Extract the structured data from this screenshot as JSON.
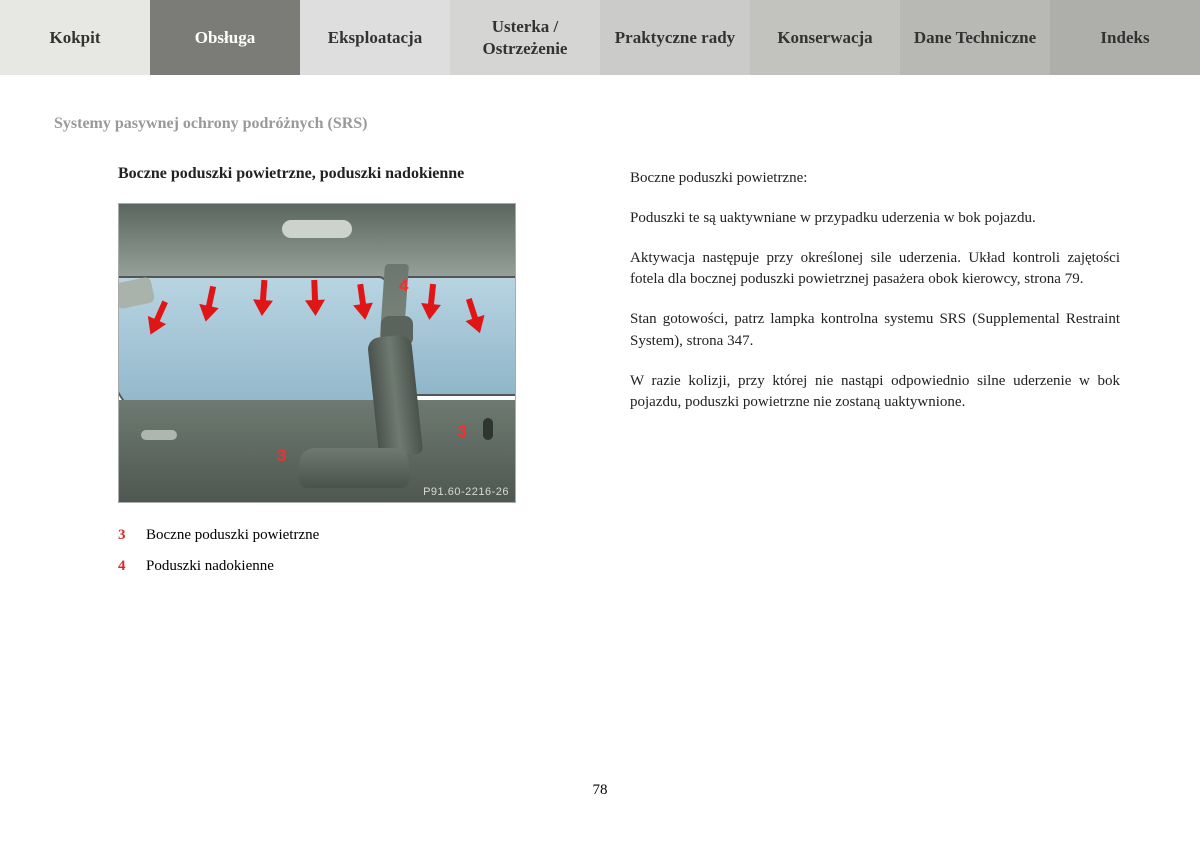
{
  "tabs": [
    {
      "label": "Kokpit",
      "bg": "#e7e7e4",
      "active": false
    },
    {
      "label": "Obsługa",
      "bg": "#7b7b78",
      "active": true
    },
    {
      "label": "Eksploatacja",
      "bg": "#dedede",
      "active": false
    },
    {
      "label": "Usterka / Ostrzeżenie",
      "bg": "#d5d5d3",
      "active": false
    },
    {
      "label": "Praktyczne rady",
      "bg": "#cbcbc9",
      "active": false
    },
    {
      "label": "Konserwacja",
      "bg": "#c2c2bf",
      "active": false
    },
    {
      "label": "Dane Techniczne",
      "bg": "#b8b8b5",
      "active": false
    },
    {
      "label": "Indeks",
      "bg": "#aeaeab",
      "active": false
    }
  ],
  "section_title": "Systemy pasywnej ochrony podróżnych (SRS)",
  "left": {
    "heading": "Boczne poduszki powietrzne, poduszki nadokienne",
    "image_code": "P91.60-2216-26",
    "legend": [
      {
        "num": "3",
        "text": "Boczne poduszki powietrzne"
      },
      {
        "num": "4",
        "text": "Poduszki nadokienne"
      }
    ],
    "callouts": {
      "n3": "3",
      "n4": "4"
    }
  },
  "right": {
    "paragraphs": [
      "Boczne poduszki powietrzne:",
      "Poduszki te są uaktywniane w przypadku uderzenia w bok pojazdu.",
      "Aktywacja następuje przy określonej sile uderzenia. Układ kontroli zajętości fotela dla bocznej poduszki powietrznej pasażera obok kierowcy, strona 79.",
      "Stan gotowości, patrz lampka kontrolna systemu SRS (Supplemental Restraint System), strona 347.",
      "W razie kolizji, przy której nie nastąpi odpowiednio silne uderzenie w bok pojazdu, poduszki powietrzne nie zostaną uaktywnione."
    ]
  },
  "page_number": "78"
}
